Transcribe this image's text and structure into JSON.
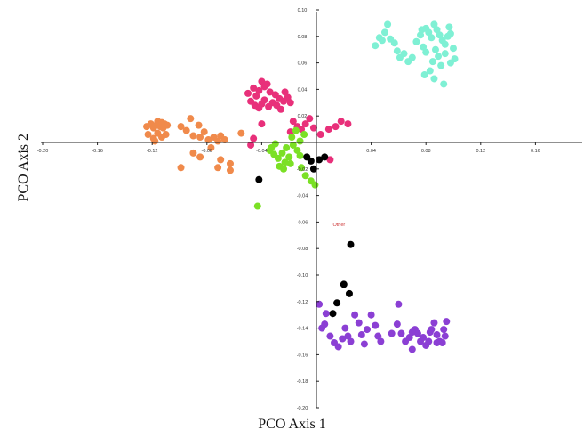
{
  "chart_data": {
    "type": "scatter",
    "xlabel": "PCO Axis 1",
    "ylabel": "PCO Axis 2",
    "xlim": [
      -0.2,
      0.2
    ],
    "ylim": [
      -0.2,
      0.1
    ],
    "x_ticks": [
      -0.2,
      -0.16,
      -0.12,
      -0.08,
      -0.04,
      0.04,
      0.08,
      0.12,
      0.16
    ],
    "y_ticks": [
      0.1,
      0.08,
      0.06,
      0.04,
      0.02,
      -0.02,
      -0.04,
      -0.06,
      -0.08,
      -0.1,
      -0.12,
      -0.14,
      -0.16,
      -0.18,
      -0.2
    ],
    "x_tick_labels": [
      "-0.20",
      "-0.16",
      "-0.12",
      "-0.08",
      "-0.04",
      "0.04",
      "0.08",
      "0.12",
      "0.16"
    ],
    "y_tick_labels": [
      "0.10",
      "0.08",
      "0.06",
      "0.04",
      "0.02",
      "-0.02",
      "-0.04",
      "-0.06",
      "-0.08",
      "-0.10",
      "-0.12",
      "-0.14",
      "-0.16",
      "-0.18",
      "-0.20"
    ],
    "legend": "none",
    "grid": false,
    "annotations": [
      {
        "text": "Other",
        "x": 0.012,
        "y": -0.063,
        "color": "#cc3333"
      }
    ],
    "series": [
      {
        "color": "#f08a4b",
        "points": [
          [
            -0.124,
            0.012
          ],
          [
            -0.121,
            0.014
          ],
          [
            -0.119,
            0.011
          ],
          [
            -0.117,
            0.013
          ],
          [
            -0.116,
            0.016
          ],
          [
            -0.114,
            0.012
          ],
          [
            -0.113,
            0.015
          ],
          [
            -0.112,
            0.011
          ],
          [
            -0.111,
            0.014
          ],
          [
            -0.109,
            0.013
          ],
          [
            -0.123,
            0.006
          ],
          [
            -0.119,
            0.003
          ],
          [
            -0.116,
            0.007
          ],
          [
            -0.113,
            0.004
          ],
          [
            -0.11,
            0.006
          ],
          [
            -0.118,
            0.001
          ],
          [
            -0.092,
            0.018
          ],
          [
            -0.086,
            0.013
          ],
          [
            -0.095,
            0.009
          ],
          [
            -0.09,
            0.005
          ],
          [
            -0.085,
            0.004
          ],
          [
            -0.082,
            0.008
          ],
          [
            -0.079,
            0.002
          ],
          [
            -0.075,
            0.004
          ],
          [
            -0.072,
            0.001
          ],
          [
            -0.07,
            0.005
          ],
          [
            -0.067,
            0.002
          ],
          [
            -0.077,
            -0.004
          ],
          [
            -0.085,
            -0.011
          ],
          [
            -0.09,
            -0.008
          ],
          [
            -0.07,
            -0.013
          ],
          [
            -0.063,
            -0.016
          ],
          [
            -0.055,
            0.007
          ],
          [
            -0.099,
            0.012
          ],
          [
            -0.099,
            -0.019
          ],
          [
            -0.072,
            -0.019
          ],
          [
            -0.063,
            -0.021
          ]
        ]
      },
      {
        "color": "#e8307a",
        "points": [
          [
            -0.05,
            0.037
          ],
          [
            -0.046,
            0.041
          ],
          [
            -0.042,
            0.039
          ],
          [
            -0.038,
            0.042
          ],
          [
            -0.036,
            0.044
          ],
          [
            -0.034,
            0.038
          ],
          [
            -0.03,
            0.036
          ],
          [
            -0.027,
            0.033
          ],
          [
            -0.024,
            0.031
          ],
          [
            -0.021,
            0.034
          ],
          [
            -0.019,
            0.03
          ],
          [
            -0.048,
            0.031
          ],
          [
            -0.045,
            0.028
          ],
          [
            -0.042,
            0.026
          ],
          [
            -0.04,
            0.029
          ],
          [
            -0.038,
            0.032
          ],
          [
            -0.035,
            0.027
          ],
          [
            -0.032,
            0.03
          ],
          [
            -0.029,
            0.028
          ],
          [
            -0.026,
            0.025
          ],
          [
            -0.044,
            0.035
          ],
          [
            -0.04,
            0.046
          ],
          [
            -0.023,
            0.038
          ],
          [
            -0.017,
            0.016
          ],
          [
            -0.014,
            0.012
          ],
          [
            -0.011,
            0.01
          ],
          [
            -0.008,
            0.014
          ],
          [
            -0.005,
            0.018
          ],
          [
            -0.002,
            0.011
          ],
          [
            -0.019,
            0.008
          ],
          [
            0.003,
            0.006
          ],
          [
            0.009,
            0.01
          ],
          [
            0.014,
            0.012
          ],
          [
            0.018,
            0.016
          ],
          [
            0.023,
            0.014
          ],
          [
            0.01,
            -0.013
          ],
          [
            -0.046,
            0.003
          ],
          [
            -0.048,
            -0.002
          ],
          [
            -0.04,
            0.014
          ]
        ]
      },
      {
        "color": "#7be025",
        "points": [
          [
            -0.034,
            -0.006
          ],
          [
            -0.031,
            -0.009
          ],
          [
            -0.028,
            -0.012
          ],
          [
            -0.025,
            -0.008
          ],
          [
            -0.023,
            -0.015
          ],
          [
            -0.022,
            -0.004
          ],
          [
            -0.02,
            -0.011
          ],
          [
            -0.017,
            -0.002
          ],
          [
            -0.014,
            -0.006
          ],
          [
            -0.012,
            -0.01
          ],
          [
            -0.027,
            -0.018
          ],
          [
            -0.024,
            -0.02
          ],
          [
            -0.011,
            -0.019
          ],
          [
            -0.008,
            -0.025
          ],
          [
            -0.004,
            -0.029
          ],
          [
            -0.001,
            -0.032
          ],
          [
            -0.03,
            -0.001
          ],
          [
            -0.018,
            0.004
          ],
          [
            -0.015,
            0.009
          ],
          [
            -0.009,
            0.006
          ],
          [
            -0.043,
            -0.048
          ],
          [
            -0.033,
            -0.004
          ],
          [
            -0.019,
            -0.016
          ],
          [
            -0.012,
            0.001
          ]
        ]
      },
      {
        "color": "#000000",
        "points": [
          [
            -0.007,
            -0.011
          ],
          [
            -0.004,
            -0.014
          ],
          [
            -0.002,
            -0.02
          ],
          [
            0.002,
            -0.013
          ],
          [
            0.006,
            -0.011
          ],
          [
            -0.042,
            -0.028
          ],
          [
            0.025,
            -0.077
          ],
          [
            0.02,
            -0.107
          ],
          [
            0.024,
            -0.114
          ],
          [
            0.015,
            -0.121
          ],
          [
            0.012,
            -0.129
          ]
        ]
      },
      {
        "color": "#7ff0d4",
        "points": [
          [
            0.043,
            0.073
          ],
          [
            0.046,
            0.079
          ],
          [
            0.048,
            0.077
          ],
          [
            0.05,
            0.083
          ],
          [
            0.052,
            0.089
          ],
          [
            0.054,
            0.078
          ],
          [
            0.057,
            0.075
          ],
          [
            0.059,
            0.069
          ],
          [
            0.061,
            0.064
          ],
          [
            0.064,
            0.067
          ],
          [
            0.067,
            0.061
          ],
          [
            0.07,
            0.064
          ],
          [
            0.073,
            0.076
          ],
          [
            0.076,
            0.081
          ],
          [
            0.078,
            0.072
          ],
          [
            0.08,
            0.086
          ],
          [
            0.082,
            0.083
          ],
          [
            0.084,
            0.079
          ],
          [
            0.086,
            0.089
          ],
          [
            0.088,
            0.085
          ],
          [
            0.09,
            0.081
          ],
          [
            0.092,
            0.077
          ],
          [
            0.094,
            0.074
          ],
          [
            0.096,
            0.08
          ],
          [
            0.098,
            0.082
          ],
          [
            0.1,
            0.071
          ],
          [
            0.087,
            0.07
          ],
          [
            0.089,
            0.065
          ],
          [
            0.085,
            0.061
          ],
          [
            0.091,
            0.058
          ],
          [
            0.094,
            0.067
          ],
          [
            0.098,
            0.06
          ],
          [
            0.101,
            0.063
          ],
          [
            0.083,
            0.054
          ],
          [
            0.079,
            0.051
          ],
          [
            0.086,
            0.048
          ],
          [
            0.093,
            0.044
          ],
          [
            0.08,
            0.068
          ],
          [
            0.097,
            0.087
          ],
          [
            0.077,
            0.085
          ]
        ]
      },
      {
        "color": "#8b3fd4",
        "points": [
          [
            0.002,
            -0.122
          ],
          [
            0.007,
            -0.129
          ],
          [
            0.004,
            -0.14
          ],
          [
            0.01,
            -0.146
          ],
          [
            0.013,
            -0.151
          ],
          [
            0.016,
            -0.154
          ],
          [
            0.019,
            -0.148
          ],
          [
            0.021,
            -0.14
          ],
          [
            0.023,
            -0.146
          ],
          [
            0.025,
            -0.15
          ],
          [
            0.028,
            -0.13
          ],
          [
            0.031,
            -0.136
          ],
          [
            0.033,
            -0.145
          ],
          [
            0.035,
            -0.152
          ],
          [
            0.037,
            -0.141
          ],
          [
            0.04,
            -0.13
          ],
          [
            0.043,
            -0.138
          ],
          [
            0.045,
            -0.146
          ],
          [
            0.047,
            -0.15
          ],
          [
            0.055,
            -0.144
          ],
          [
            0.059,
            -0.137
          ],
          [
            0.062,
            -0.144
          ],
          [
            0.065,
            -0.15
          ],
          [
            0.068,
            -0.147
          ],
          [
            0.07,
            -0.156
          ],
          [
            0.072,
            -0.141
          ],
          [
            0.074,
            -0.144
          ],
          [
            0.076,
            -0.15
          ],
          [
            0.078,
            -0.147
          ],
          [
            0.08,
            -0.153
          ],
          [
            0.082,
            -0.15
          ],
          [
            0.084,
            -0.141
          ],
          [
            0.086,
            -0.136
          ],
          [
            0.088,
            -0.145
          ],
          [
            0.09,
            -0.15
          ],
          [
            0.092,
            -0.151
          ],
          [
            0.094,
            -0.146
          ],
          [
            0.095,
            -0.135
          ],
          [
            0.07,
            -0.143
          ],
          [
            0.06,
            -0.122
          ],
          [
            0.083,
            -0.143
          ],
          [
            0.093,
            -0.141
          ],
          [
            0.088,
            -0.151
          ],
          [
            0.006,
            -0.137
          ]
        ]
      }
    ]
  }
}
